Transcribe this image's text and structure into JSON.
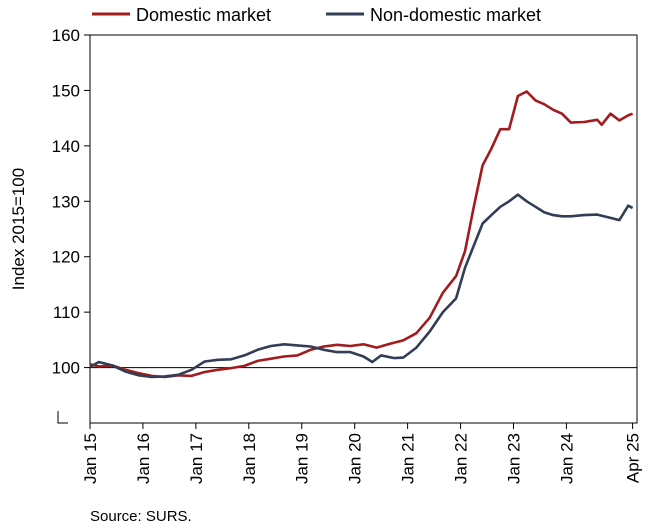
{
  "chart_data": {
    "type": "line",
    "title": "",
    "xlabel": "",
    "ylabel": "Index 2015=100",
    "ylim": [
      90,
      160
    ],
    "yticks": [
      "160",
      "150",
      "140",
      "130",
      "120",
      "110",
      "100"
    ],
    "ytick_values": [
      160,
      150,
      140,
      130,
      120,
      110,
      100
    ],
    "xticks": [
      "Jan 15",
      "Jan 16",
      "Jan 17",
      "Jan 18",
      "Jan 19",
      "Jan 20",
      "Jan 21",
      "Jan 22",
      "Jan 23",
      "Jan 24",
      "Apr 25"
    ],
    "xtick_values": [
      "2015-01",
      "2016-01",
      "2017-01",
      "2018-01",
      "2019-01",
      "2020-01",
      "2021-01",
      "2022-01",
      "2023-01",
      "2024-01",
      "2025-04"
    ],
    "xlim": [
      "2015-01",
      "2025-05"
    ],
    "reference_line": 100,
    "grid": false,
    "legend_position": "top",
    "series": [
      {
        "name": "Domestic market",
        "color": "#a01c1f",
        "points": [
          [
            "2015-01",
            100.6
          ],
          [
            "2015-03",
            100.2
          ],
          [
            "2015-06",
            100.4
          ],
          [
            "2015-09",
            99.6
          ],
          [
            "2015-12",
            99.0
          ],
          [
            "2016-03",
            98.5
          ],
          [
            "2016-06",
            98.3
          ],
          [
            "2016-09",
            98.6
          ],
          [
            "2016-12",
            98.5
          ],
          [
            "2017-03",
            99.2
          ],
          [
            "2017-06",
            99.6
          ],
          [
            "2017-09",
            99.9
          ],
          [
            "2017-12",
            100.3
          ],
          [
            "2018-03",
            101.2
          ],
          [
            "2018-06",
            101.6
          ],
          [
            "2018-09",
            102.0
          ],
          [
            "2018-12",
            102.2
          ],
          [
            "2019-03",
            103.2
          ],
          [
            "2019-06",
            103.8
          ],
          [
            "2019-09",
            104.1
          ],
          [
            "2019-12",
            103.9
          ],
          [
            "2020-03",
            104.2
          ],
          [
            "2020-06",
            103.6
          ],
          [
            "2020-09",
            104.3
          ],
          [
            "2020-12",
            104.9
          ],
          [
            "2021-03",
            106.2
          ],
          [
            "2021-06",
            109.0
          ],
          [
            "2021-09",
            113.5
          ],
          [
            "2021-12",
            116.5
          ],
          [
            "2022-02",
            121.0
          ],
          [
            "2022-04",
            129.0
          ],
          [
            "2022-06",
            136.5
          ],
          [
            "2022-08",
            139.5
          ],
          [
            "2022-10",
            143.0
          ],
          [
            "2022-12",
            143.0
          ],
          [
            "2023-02",
            149.0
          ],
          [
            "2023-04",
            149.8
          ],
          [
            "2023-06",
            148.2
          ],
          [
            "2023-08",
            147.5
          ],
          [
            "2023-10",
            146.5
          ],
          [
            "2023-12",
            145.8
          ],
          [
            "2024-02",
            144.2
          ],
          [
            "2024-05",
            144.3
          ],
          [
            "2024-08",
            144.7
          ],
          [
            "2024-09",
            143.8
          ],
          [
            "2024-11",
            145.8
          ],
          [
            "2025-01",
            144.6
          ],
          [
            "2025-03",
            145.5
          ],
          [
            "2025-04",
            145.8
          ]
        ]
      },
      {
        "name": "Non-domestic market",
        "color": "#323e55",
        "points": [
          [
            "2015-01",
            100.1
          ],
          [
            "2015-03",
            101.0
          ],
          [
            "2015-06",
            100.4
          ],
          [
            "2015-09",
            99.3
          ],
          [
            "2015-12",
            98.6
          ],
          [
            "2016-03",
            98.3
          ],
          [
            "2016-06",
            98.4
          ],
          [
            "2016-09",
            98.7
          ],
          [
            "2016-12",
            99.6
          ],
          [
            "2017-03",
            101.1
          ],
          [
            "2017-06",
            101.4
          ],
          [
            "2017-09",
            101.5
          ],
          [
            "2017-12",
            102.2
          ],
          [
            "2018-03",
            103.2
          ],
          [
            "2018-06",
            103.9
          ],
          [
            "2018-09",
            104.2
          ],
          [
            "2018-12",
            104.0
          ],
          [
            "2019-03",
            103.8
          ],
          [
            "2019-06",
            103.2
          ],
          [
            "2019-09",
            102.8
          ],
          [
            "2019-12",
            102.8
          ],
          [
            "2020-03",
            102.0
          ],
          [
            "2020-05",
            101.0
          ],
          [
            "2020-07",
            102.2
          ],
          [
            "2020-10",
            101.7
          ],
          [
            "2020-12",
            101.8
          ],
          [
            "2021-03",
            103.6
          ],
          [
            "2021-06",
            106.5
          ],
          [
            "2021-09",
            110.0
          ],
          [
            "2021-12",
            112.5
          ],
          [
            "2022-02",
            118.0
          ],
          [
            "2022-04",
            122.0
          ],
          [
            "2022-06",
            126.0
          ],
          [
            "2022-08",
            127.5
          ],
          [
            "2022-10",
            129.0
          ],
          [
            "2022-12",
            130.0
          ],
          [
            "2023-02",
            131.2
          ],
          [
            "2023-04",
            130.0
          ],
          [
            "2023-06",
            129.0
          ],
          [
            "2023-08",
            128.0
          ],
          [
            "2023-10",
            127.5
          ],
          [
            "2023-12",
            127.3
          ],
          [
            "2024-02",
            127.3
          ],
          [
            "2024-05",
            127.5
          ],
          [
            "2024-08",
            127.6
          ],
          [
            "2024-11",
            127.0
          ],
          [
            "2025-01",
            126.6
          ],
          [
            "2025-03",
            129.2
          ],
          [
            "2025-04",
            128.8
          ]
        ]
      }
    ]
  },
  "source": "Source: SURS."
}
